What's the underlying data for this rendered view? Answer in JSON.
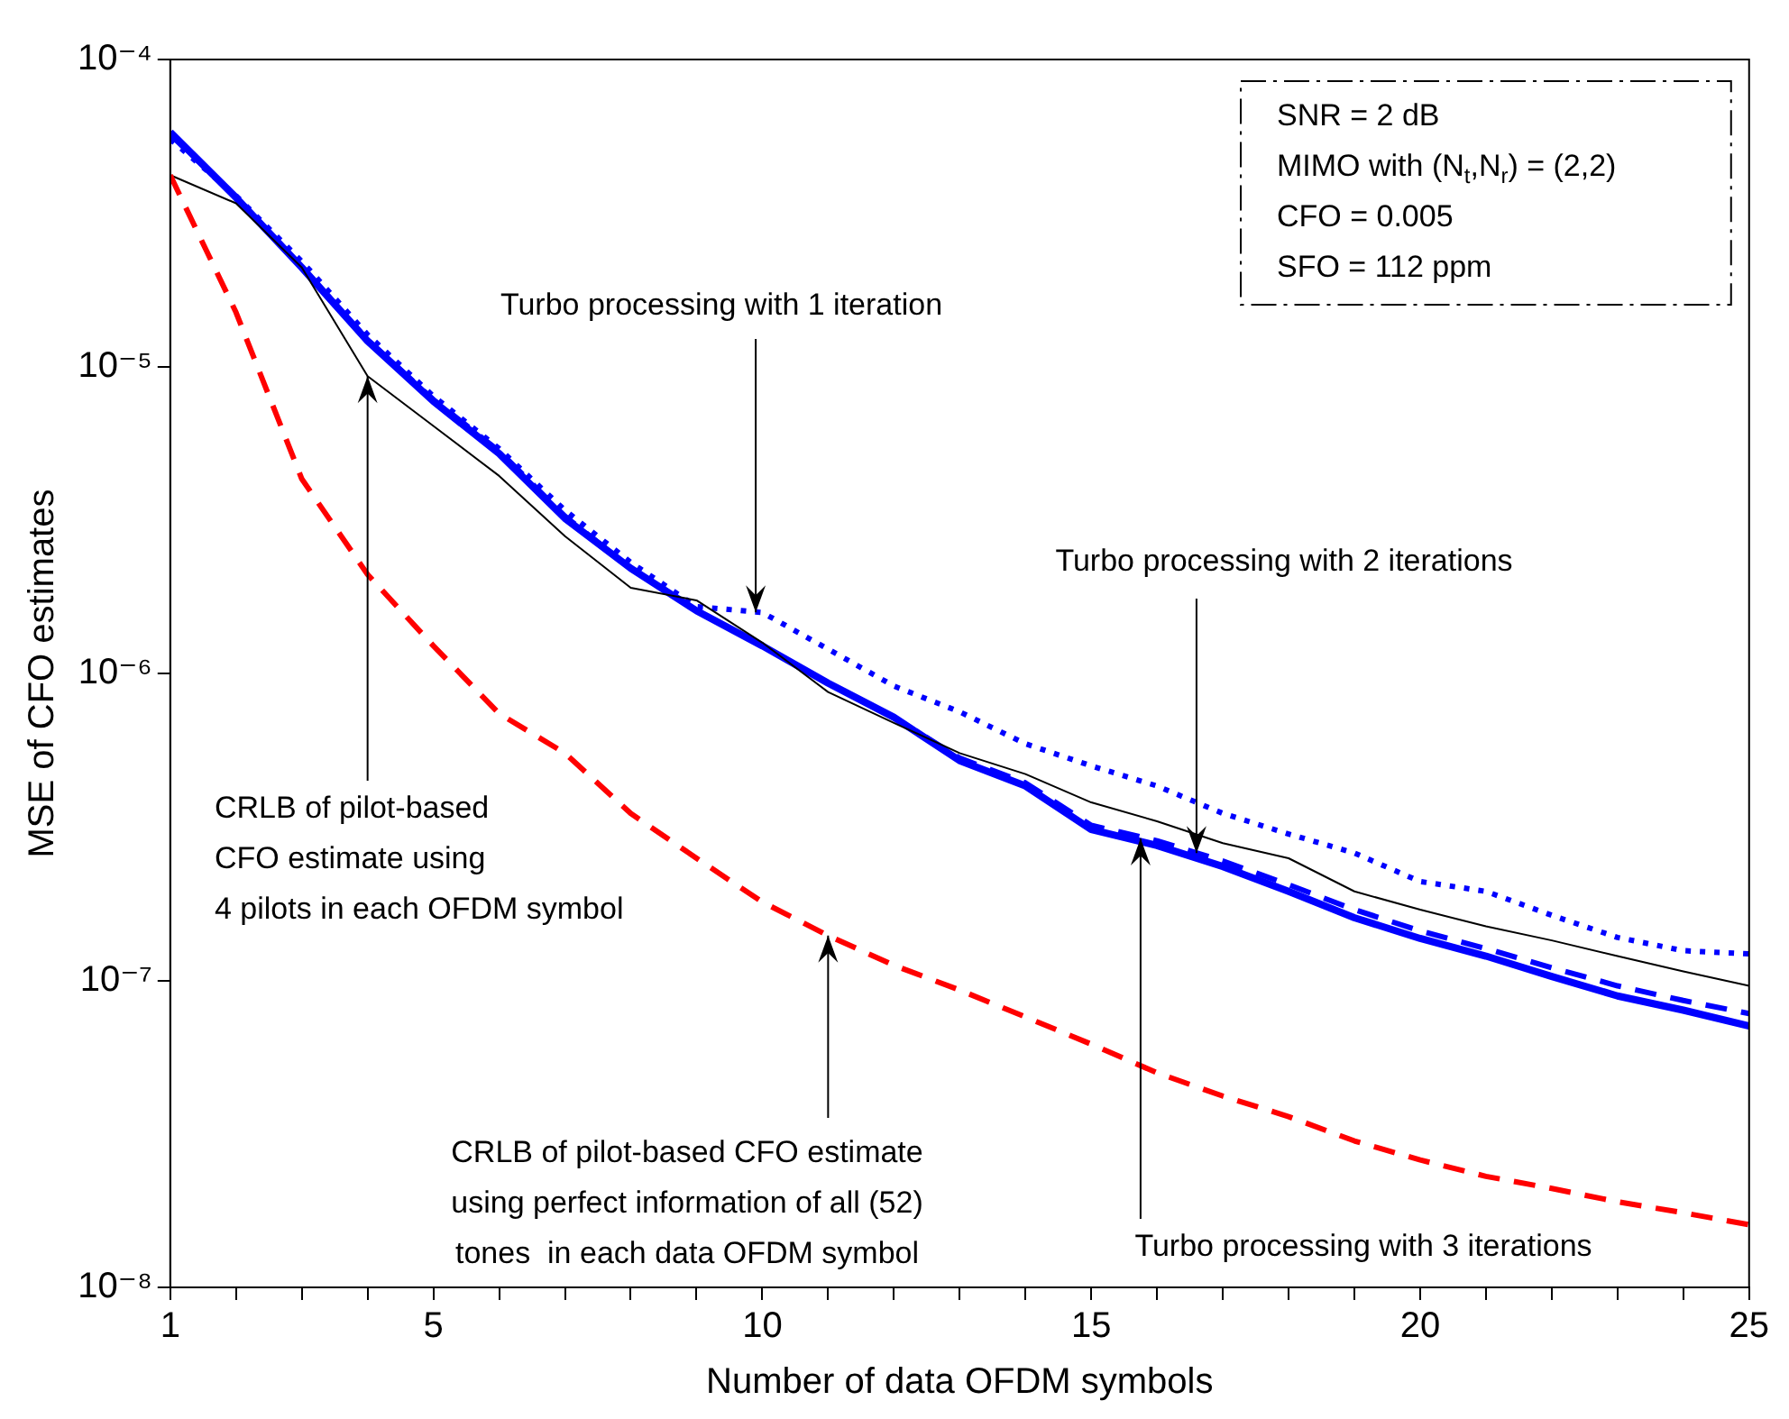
{
  "chart_data": {
    "type": "line",
    "xlabel": "Number of data OFDM symbols",
    "ylabel": "MSE of CFO estimates",
    "log": "y",
    "grid": false,
    "legend": false,
    "x": [
      1,
      2,
      3,
      4,
      5,
      6,
      7,
      8,
      9,
      10,
      11,
      12,
      13,
      14,
      15,
      16,
      17,
      18,
      19,
      20,
      21,
      22,
      23,
      24,
      25
    ],
    "xlim": [
      1,
      25
    ],
    "xticks": [
      1,
      {
        "value": 2,
        "label": null
      },
      {
        "value": 3,
        "label": null
      },
      {
        "value": 4,
        "label": null
      },
      5,
      {
        "value": 6,
        "label": null
      },
      {
        "value": 7,
        "label": null
      },
      {
        "value": 8,
        "label": null
      },
      {
        "value": 9,
        "label": null
      },
      10,
      {
        "value": 11,
        "label": null
      },
      {
        "value": 12,
        "label": null
      },
      {
        "value": 13,
        "label": null
      },
      {
        "value": 14,
        "label": null
      },
      15,
      {
        "value": 16,
        "label": null
      },
      {
        "value": 17,
        "label": null
      },
      {
        "value": 18,
        "label": null
      },
      {
        "value": 19,
        "label": null
      },
      20,
      {
        "value": 21,
        "label": null
      },
      {
        "value": 22,
        "label": null
      },
      {
        "value": 23,
        "label": null
      },
      {
        "value": 24,
        "label": null
      },
      25
    ],
    "ylim": [
      1e-08,
      0.0001
    ],
    "yticks": [
      {
        "value": 1e-08,
        "label": "10⁻⁸"
      },
      {
        "value": 1e-07,
        "label": "10⁻⁷"
      },
      {
        "value": 1e-06,
        "label": "10⁻⁶"
      },
      {
        "value": 1e-05,
        "label": "10⁻⁵"
      },
      {
        "value": 0.0001,
        "label": "10⁻⁴"
      }
    ],
    "series": [
      {
        "color": "#ff0000",
        "line_style": "dashed",
        "values": [
          4.2e-05,
          1.5e-05,
          4.3e-06,
          2.1e-06,
          1.23e-06,
          7.4e-07,
          5.5e-07,
          3.5e-07,
          2.5e-07,
          1.8e-07,
          1.4e-07,
          1.12e-07,
          9.3e-08,
          7.6e-08,
          6.2e-08,
          5e-08,
          4.2e-08,
          3.6e-08,
          3e-08,
          2.6e-08,
          2.3e-08,
          2.1e-08,
          1.9e-08,
          1.75e-08,
          1.6e-08
        ]
      },
      {
        "color": "#000000",
        "line_style": "solid",
        "values": [
          4.2e-05,
          3.4e-05,
          2.1e-05,
          9.3e-06,
          6.4e-06,
          4.4e-06,
          2.8e-06,
          1.9e-06,
          1.73e-06,
          1.26e-06,
          8.7e-07,
          6.9e-07,
          5.5e-07,
          4.7e-07,
          3.8e-07,
          3.3e-07,
          2.8e-07,
          2.5e-07,
          1.95e-07,
          1.7e-07,
          1.5e-07,
          1.35e-07,
          1.2e-07,
          1.07e-07,
          9.6e-08
        ]
      },
      {
        "color": "#0000ff",
        "line_style": "dotted",
        "values": [
          5.5e-05,
          3.6e-05,
          2.2e-05,
          1.27e-05,
          8e-06,
          5.4e-06,
          3.4e-06,
          2.3e-06,
          1.65e-06,
          1.58e-06,
          1.2e-06,
          9.1e-07,
          7.5e-07,
          5.9e-07,
          5e-07,
          4.3e-07,
          3.5e-07,
          3e-07,
          2.6e-07,
          2.1e-07,
          1.95e-07,
          1.63e-07,
          1.38e-07,
          1.25e-07,
          1.22e-07
        ]
      },
      {
        "color": "#0000ff",
        "line_style": "dashed",
        "values": [
          5.7e-05,
          3.55e-05,
          2.1e-05,
          1.22e-05,
          7.8e-06,
          5.3e-06,
          3.25e-06,
          2.2e-06,
          1.6e-06,
          1.23e-06,
          9.3e-07,
          7.2e-07,
          5.3e-07,
          4.4e-07,
          3.2e-07,
          2.85e-07,
          2.45e-07,
          2.05e-07,
          1.7e-07,
          1.45e-07,
          1.27e-07,
          1.1e-07,
          9.6e-08,
          8.6e-08,
          7.8e-08
        ]
      },
      {
        "color": "#0000ff",
        "line_style": "solid",
        "values": [
          5.8e-05,
          3.55e-05,
          2.1e-05,
          1.21e-05,
          7.7e-06,
          5.2e-06,
          3.2e-06,
          2.2e-06,
          1.6e-06,
          1.23e-06,
          9.3e-07,
          7.2e-07,
          5.2e-07,
          4.3e-07,
          3.1e-07,
          2.75e-07,
          2.35e-07,
          1.95e-07,
          1.6e-07,
          1.37e-07,
          1.2e-07,
          1.03e-07,
          8.9e-08,
          8e-08,
          7.1e-08
        ]
      }
    ],
    "annotations": [
      {
        "text": "Turbo processing with 1 iteration",
        "x": 9.9,
        "y": 1.58e-06
      },
      {
        "text": "Turbo processing with 2 iterations",
        "x": 16.6,
        "y": 2.6e-07
      },
      {
        "text": "Turbo processing with 3 iterations",
        "x": 15.75,
        "y": 2.9e-07
      },
      {
        "text": "CRLB of pilot-based\nCFO estimate using\n4 pilots in each OFDM symbol",
        "x": 4,
        "y": 9.3e-06
      },
      {
        "text": "CRLB of pilot-based CFO estimate\nusing perfect information of all (52)\ntones  in each data OFDM symbol",
        "x": 11,
        "y": 1.4e-07
      },
      "SNR = 2 dB",
      "MIMO with (N$_{t}$,N$_{r}$) = (2,2)",
      "CFO = 0.005",
      "SFO = 112 ppm"
    ]
  }
}
